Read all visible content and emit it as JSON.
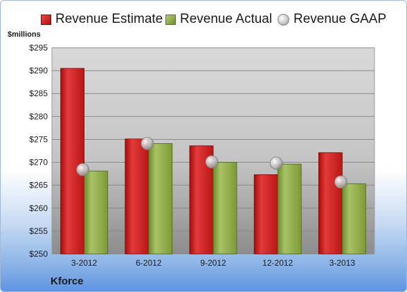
{
  "legend": {
    "estimate": "Revenue Estimate",
    "actual": "Revenue Actual",
    "gaap": "Revenue GAAP"
  },
  "unit_label": "$millions",
  "company": "Kforce",
  "colors": {
    "estimate": "#d42020",
    "actual": "#8caa45",
    "gaap": "#c0c0c0",
    "plot_top": "#d9d9d9",
    "plot_bottom": "#8c8c8c"
  },
  "chart_data": {
    "type": "bar",
    "categories": [
      "3-2012",
      "6-2012",
      "9-2012",
      "12-2012",
      "3-2013"
    ],
    "series": [
      {
        "name": "Revenue Estimate",
        "values": [
          290.5,
          275.1,
          273.6,
          267.3,
          272.1
        ]
      },
      {
        "name": "Revenue Actual",
        "values": [
          268.1,
          274.1,
          270.0,
          269.6,
          265.3
        ]
      },
      {
        "name": "Revenue GAAP",
        "values": [
          268.4,
          274.1,
          270.1,
          269.8,
          265.7
        ]
      }
    ],
    "ylabel": "$millions",
    "ylim": [
      250,
      295
    ],
    "yticks": [
      "$250",
      "$255",
      "$260",
      "$265",
      "$270",
      "$275",
      "$280",
      "$285",
      "$290",
      "$295"
    ],
    "grid": true,
    "legend_position": "top"
  }
}
